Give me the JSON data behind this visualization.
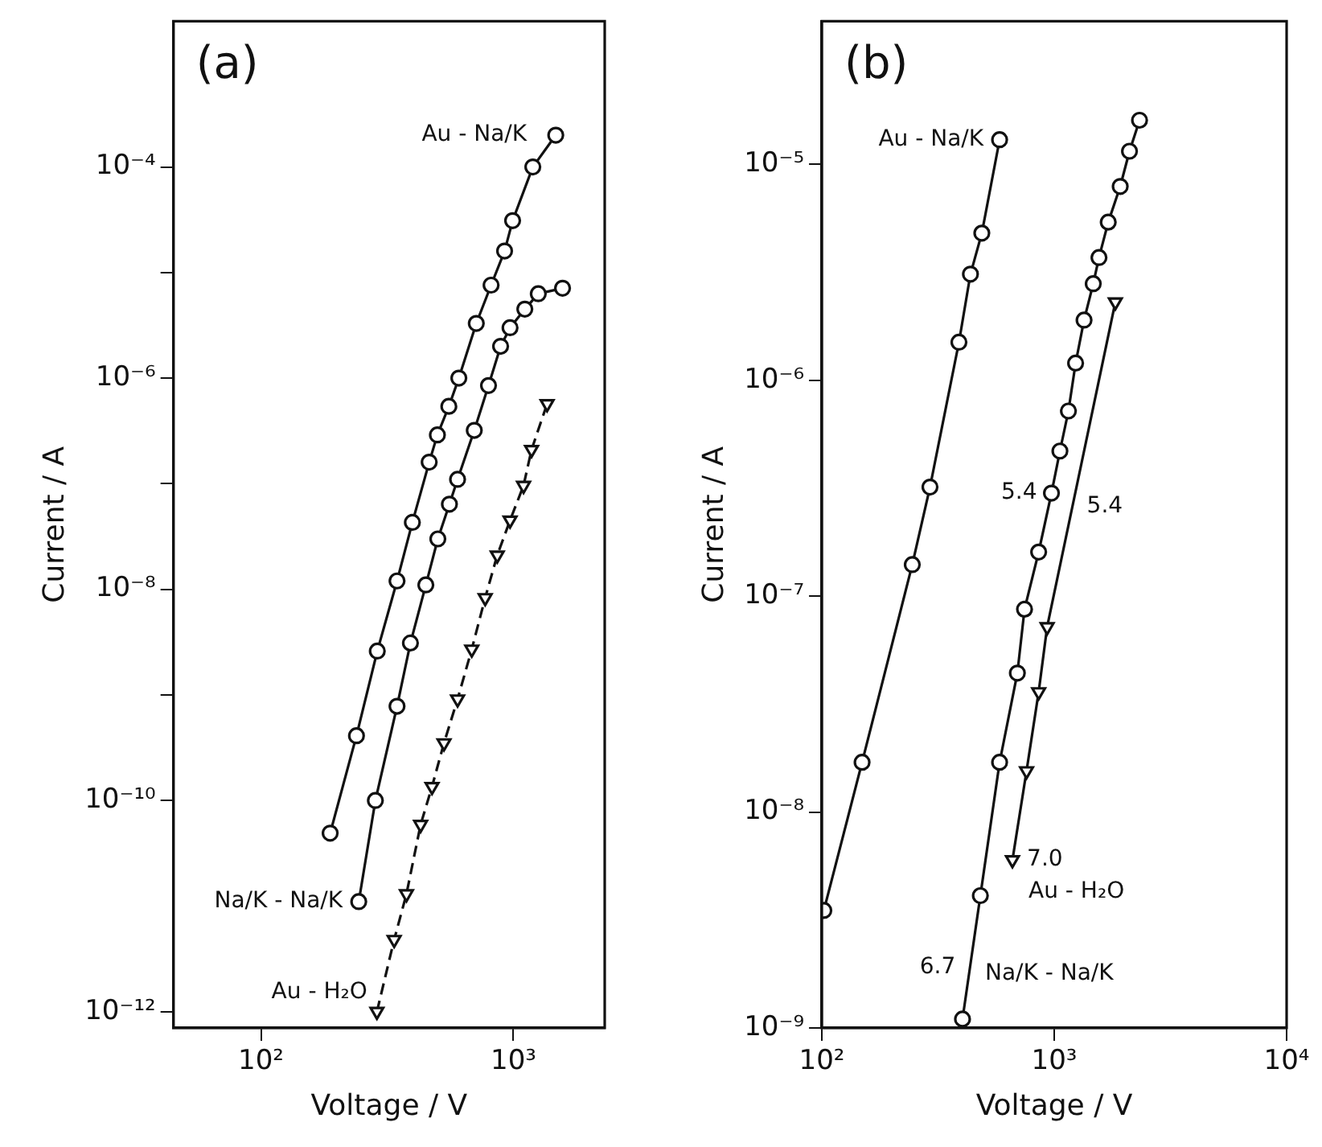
{
  "chart_data": [
    {
      "type": "line",
      "xlabel": "Voltage / V",
      "ylabel": "Current / A",
      "log": "xy",
      "grid": false,
      "line_style": "solid",
      "xlim": [
        45,
        2300
      ],
      "xticks": [
        {
          "value": 100,
          "label": "10²"
        },
        {
          "value": 1000,
          "label": "10³"
        }
      ],
      "ylim": [
        7e-13,
        0.0024
      ],
      "yticks": [
        {
          "value": 1e-12,
          "label": "10⁻¹²"
        },
        {
          "value": 1e-10,
          "label": "10⁻¹⁰"
        },
        {
          "value": 1e-09,
          "label": null
        },
        {
          "value": 1e-08,
          "label": "10⁻⁸"
        },
        {
          "value": 1e-07,
          "label": null
        },
        {
          "value": 1e-06,
          "label": "10⁻⁶"
        },
        {
          "value": 1e-05,
          "label": null
        },
        {
          "value": 0.0001,
          "label": "10⁻⁴"
        }
      ],
      "series": [
        {
          "name": "Au - Na/K",
          "color": "#111111",
          "marker": "circle",
          "x": [
            188,
            239,
            289,
            346,
            398,
            464,
            500,
            555,
            608,
            713,
            816,
            923,
            993,
            1194,
            1472
          ],
          "values": [
            4.9e-11,
            4.1e-10,
            2.6e-09,
            1.2e-08,
            4.3e-08,
            1.6e-07,
            2.9e-07,
            5.4e-07,
            1e-06,
            3.3e-06,
            7.6e-06,
            1.6e-05,
            3.1e-05,
            0.0001,
            0.0002
          ]
        },
        {
          "name": "Na/K - Na/K",
          "color": "#111111",
          "marker": "circle",
          "x": [
            244,
            284,
            346,
            391,
            450,
            502,
            558,
            601,
            700,
            797,
            890,
            970,
            1110,
            1255,
            1566
          ],
          "values": [
            1.1e-11,
            1e-10,
            7.8e-10,
            3.1e-09,
            1.1e-08,
            3e-08,
            6.4e-08,
            1.1e-07,
            3.2e-07,
            8.5e-07,
            2e-06,
            3e-06,
            4.5e-06,
            6.3e-06,
            7.1e-06
          ]
        },
        {
          "name": "Au - H₂O",
          "color": "#111111",
          "marker": "triangle",
          "line_style": "dashed",
          "x": [
            288,
            337,
            377,
            429,
            476,
            531,
            601,
            684,
            773,
            863,
            970,
            1097,
            1180,
            1360
          ],
          "values": [
            1e-12,
            4.8e-12,
            1.3e-11,
            5.9e-11,
            1.35e-10,
            3.5e-10,
            9.1e-10,
            2.7e-09,
            8.3e-09,
            2.1e-08,
            4.5e-08,
            9.6e-08,
            2.1e-07,
            5.7e-07
          ]
        }
      ],
      "annotations": [
        "(a)"
      ]
    },
    {
      "type": "line",
      "xlabel": "Voltage / V",
      "ylabel": "Current / A",
      "log": "xy",
      "grid": false,
      "line_style": "solid",
      "xlim": [
        100,
        10000
      ],
      "xticks": [
        {
          "value": 100,
          "label": "10²"
        },
        {
          "value": 1000,
          "label": "10³"
        },
        {
          "value": 10000,
          "label": "10⁴"
        }
      ],
      "ylim": [
        1e-09,
        4.6e-05
      ],
      "yticks": [
        {
          "value": 1e-09,
          "label": "10⁻⁹"
        },
        {
          "value": 1e-08,
          "label": "10⁻⁸"
        },
        {
          "value": 1e-07,
          "label": "10⁻⁷"
        },
        {
          "value": 1e-06,
          "label": "10⁻⁶"
        },
        {
          "value": 1e-05,
          "label": "10⁻⁵"
        }
      ],
      "series": [
        {
          "name": "Au - Na/K",
          "color": "#111111",
          "marker": "circle",
          "x": [
            102,
            149,
            245,
            292,
            389,
            436,
            488,
            582
          ],
          "values": [
            3.5e-09,
            1.7e-08,
            1.4e-07,
            3.2e-07,
            1.5e-06,
            3.1e-06,
            4.8e-06,
            1.3e-05
          ]
        },
        {
          "name": "Na/K - Na/K",
          "color": "#111111",
          "marker": "circle",
          "x": [
            403,
            481,
            582,
            694,
            745,
            857,
            973,
            1058,
            1151,
            1236,
            1344,
            1472,
            1558,
            1708,
            1923,
            2108,
            2329
          ],
          "values": [
            1.1e-09,
            4.1e-09,
            1.7e-08,
            4.4e-08,
            8.7e-08,
            1.6e-07,
            3e-07,
            4.7e-07,
            7.2e-07,
            1.2e-06,
            1.9e-06,
            2.8e-06,
            3.7e-06,
            5.4e-06,
            7.9e-06,
            1.15e-05,
            1.6e-05
          ]
        },
        {
          "name": "Au - H₂O",
          "color": "#111111",
          "marker": "triangle",
          "x": [
            661,
            760,
            857,
            932,
            1832
          ],
          "values": [
            6e-09,
            1.55e-08,
            3.6e-08,
            7.2e-08,
            2.3e-06
          ]
        }
      ],
      "annotations": [
        "(b)",
        {
          "text": "5.4",
          "x": 973,
          "y": 3e-07
        },
        {
          "text": "5.4",
          "x": 1197,
          "y": 2.6e-07
        },
        {
          "text": "7.0",
          "x": 661,
          "y": 6e-09
        },
        {
          "text": "6.7",
          "x": 434,
          "y": 1.9e-09
        }
      ]
    }
  ]
}
